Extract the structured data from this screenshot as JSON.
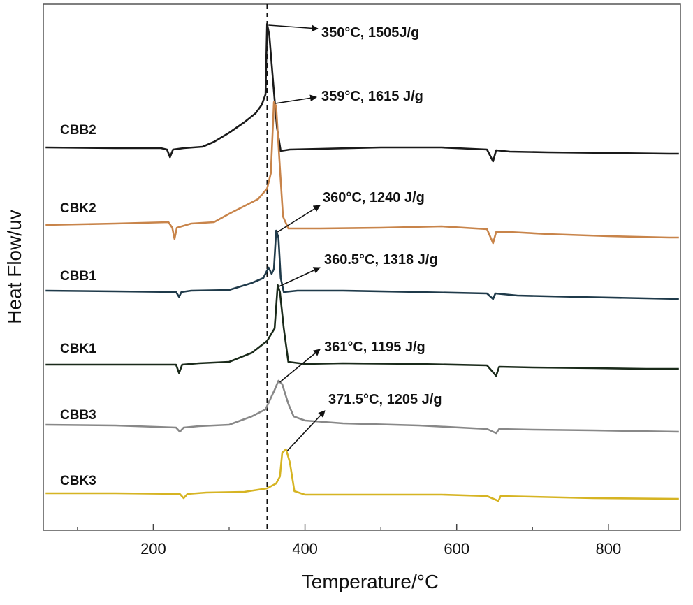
{
  "chart_data": {
    "type": "line",
    "xlabel": "Temperature/°C",
    "ylabel": "Heat Flow/uv",
    "xlim": [
      55,
      895
    ],
    "x_ticks": [
      200,
      400,
      600,
      800
    ],
    "x_minor_ticks": [
      100,
      300,
      500,
      700
    ],
    "y_ticks_shown": false,
    "grid": false,
    "reference_line": {
      "x": 350,
      "style": "dashed"
    },
    "series": [
      {
        "name": "CBB2",
        "color": "#1a1a1a",
        "points": [
          [
            58,
            211
          ],
          [
            150,
            212
          ],
          [
            210,
            212
          ],
          [
            218,
            214
          ],
          [
            222,
            225
          ],
          [
            226,
            214
          ],
          [
            240,
            212
          ],
          [
            265,
            210
          ],
          [
            280,
            203
          ],
          [
            300,
            190
          ],
          [
            320,
            175
          ],
          [
            335,
            162
          ],
          [
            343,
            150
          ],
          [
            348,
            135
          ],
          [
            350,
            34
          ],
          [
            353,
            50
          ],
          [
            358,
            118
          ],
          [
            363,
            182
          ],
          [
            368,
            216
          ],
          [
            380,
            214
          ],
          [
            420,
            213
          ],
          [
            500,
            211
          ],
          [
            580,
            211
          ],
          [
            640,
            214
          ],
          [
            648,
            231
          ],
          [
            652,
            215
          ],
          [
            670,
            217
          ],
          [
            720,
            218
          ],
          [
            800,
            219
          ],
          [
            880,
            220
          ],
          [
            893,
            220
          ]
        ]
      },
      {
        "name": "CBK2",
        "color": "#c8844a",
        "points": [
          [
            58,
            322
          ],
          [
            150,
            320
          ],
          [
            220,
            318
          ],
          [
            225,
            326
          ],
          [
            228,
            342
          ],
          [
            231,
            326
          ],
          [
            250,
            320
          ],
          [
            280,
            318
          ],
          [
            300,
            306
          ],
          [
            320,
            295
          ],
          [
            338,
            285
          ],
          [
            350,
            270
          ],
          [
            355,
            248
          ],
          [
            359,
            146
          ],
          [
            362,
            152
          ],
          [
            366,
            225
          ],
          [
            371,
            310
          ],
          [
            378,
            327
          ],
          [
            420,
            327
          ],
          [
            500,
            326
          ],
          [
            580,
            324
          ],
          [
            640,
            328
          ],
          [
            648,
            348
          ],
          [
            652,
            332
          ],
          [
            670,
            332
          ],
          [
            720,
            335
          ],
          [
            800,
            338
          ],
          [
            880,
            340
          ],
          [
            893,
            340
          ]
        ]
      },
      {
        "name": "CBB1",
        "color": "#1f3a4a",
        "points": [
          [
            58,
            416
          ],
          [
            150,
            417
          ],
          [
            230,
            418
          ],
          [
            234,
            425
          ],
          [
            237,
            418
          ],
          [
            250,
            416
          ],
          [
            300,
            415
          ],
          [
            330,
            405
          ],
          [
            345,
            398
          ],
          [
            352,
            383
          ],
          [
            356,
            392
          ],
          [
            359,
            385
          ],
          [
            362,
            330
          ],
          [
            365,
            340
          ],
          [
            368,
            398
          ],
          [
            372,
            418
          ],
          [
            390,
            416
          ],
          [
            450,
            416
          ],
          [
            550,
            418
          ],
          [
            640,
            420
          ],
          [
            648,
            428
          ],
          [
            651,
            420
          ],
          [
            680,
            423
          ],
          [
            760,
            425
          ],
          [
            850,
            427
          ],
          [
            893,
            428
          ]
        ]
      },
      {
        "name": "CBK1",
        "color": "#1a2a1a",
        "points": [
          [
            58,
            522
          ],
          [
            150,
            522
          ],
          [
            230,
            522
          ],
          [
            234,
            534
          ],
          [
            238,
            522
          ],
          [
            260,
            520
          ],
          [
            300,
            518
          ],
          [
            330,
            505
          ],
          [
            350,
            488
          ],
          [
            360,
            470
          ],
          [
            364,
            408
          ],
          [
            367,
            418
          ],
          [
            372,
            470
          ],
          [
            378,
            518
          ],
          [
            400,
            521
          ],
          [
            450,
            520
          ],
          [
            550,
            521
          ],
          [
            640,
            523
          ],
          [
            652,
            538
          ],
          [
            656,
            525
          ],
          [
            700,
            526
          ],
          [
            780,
            527
          ],
          [
            850,
            528
          ],
          [
            893,
            528
          ]
        ]
      },
      {
        "name": "CBB3",
        "color": "#888888",
        "points": [
          [
            58,
            608
          ],
          [
            150,
            609
          ],
          [
            230,
            612
          ],
          [
            235,
            618
          ],
          [
            240,
            612
          ],
          [
            260,
            610
          ],
          [
            300,
            608
          ],
          [
            330,
            596
          ],
          [
            348,
            586
          ],
          [
            360,
            558
          ],
          [
            365,
            545
          ],
          [
            370,
            550
          ],
          [
            378,
            578
          ],
          [
            385,
            596
          ],
          [
            400,
            602
          ],
          [
            450,
            606
          ],
          [
            550,
            609
          ],
          [
            640,
            614
          ],
          [
            652,
            620
          ],
          [
            656,
            614
          ],
          [
            700,
            615
          ],
          [
            780,
            616
          ],
          [
            893,
            618
          ]
        ]
      },
      {
        "name": "CBK3",
        "color": "#d6b423",
        "points": [
          [
            58,
            706
          ],
          [
            150,
            706
          ],
          [
            235,
            707
          ],
          [
            240,
            713
          ],
          [
            245,
            707
          ],
          [
            270,
            705
          ],
          [
            320,
            704
          ],
          [
            350,
            699
          ],
          [
            362,
            692
          ],
          [
            367,
            682
          ],
          [
            370,
            648
          ],
          [
            375,
            643
          ],
          [
            380,
            662
          ],
          [
            386,
            703
          ],
          [
            400,
            708
          ],
          [
            500,
            708
          ],
          [
            580,
            708
          ],
          [
            640,
            710
          ],
          [
            655,
            717
          ],
          [
            658,
            710
          ],
          [
            700,
            711
          ],
          [
            780,
            713
          ],
          [
            893,
            714
          ]
        ]
      }
    ],
    "annotations": [
      {
        "text": "350°C, 1505J/g",
        "target": "CBB2"
      },
      {
        "text": "359°C, 1615 J/g",
        "target": "CBK2"
      },
      {
        "text": "360°C, 1240 J/g",
        "target": "CBB1"
      },
      {
        "text": "360.5°C, 1318 J/g",
        "target": "CBK1"
      },
      {
        "text": "361°C, 1195 J/g",
        "target": "CBB3"
      },
      {
        "text": "371.5°C, 1205 J/g",
        "target": "CBK3"
      }
    ]
  }
}
